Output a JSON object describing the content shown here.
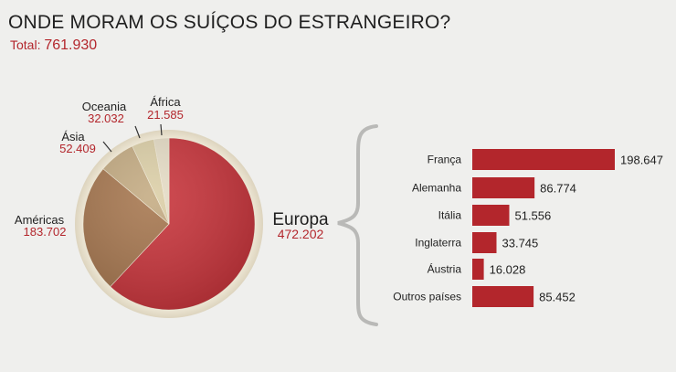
{
  "header": {
    "title": "ONDE MORAM OS SUÍÇOS DO ESTRANGEIRO?",
    "total_label": "Total:",
    "total_value": "761.930"
  },
  "chart_data": [
    {
      "type": "pie",
      "slices": [
        {
          "label": "Europa",
          "value": 472202,
          "display": "472.202",
          "color": "#c8333a"
        },
        {
          "label": "Américas",
          "value": 183702,
          "display": "183.702",
          "color": "#a6764e"
        },
        {
          "label": "Ásia",
          "value": 52409,
          "display": "52.409",
          "color": "#c4ab82"
        },
        {
          "label": "Oceania",
          "value": 32032,
          "display": "32.032",
          "color": "#dccfa7"
        },
        {
          "label": "África",
          "value": 21585,
          "display": "21.585",
          "color": "#e6ddc6"
        }
      ]
    },
    {
      "type": "bar",
      "orientation": "horizontal",
      "color": "#b3262c",
      "categories": [
        "França",
        "Alemanha",
        "Itália",
        "Inglaterra",
        "Áustria",
        "Outros países"
      ],
      "values": [
        198647,
        86774,
        51556,
        33745,
        16028,
        85452
      ],
      "value_labels": [
        "198.647",
        "86.774",
        "51.556",
        "33.745",
        "16.028",
        "85.452"
      ]
    }
  ]
}
